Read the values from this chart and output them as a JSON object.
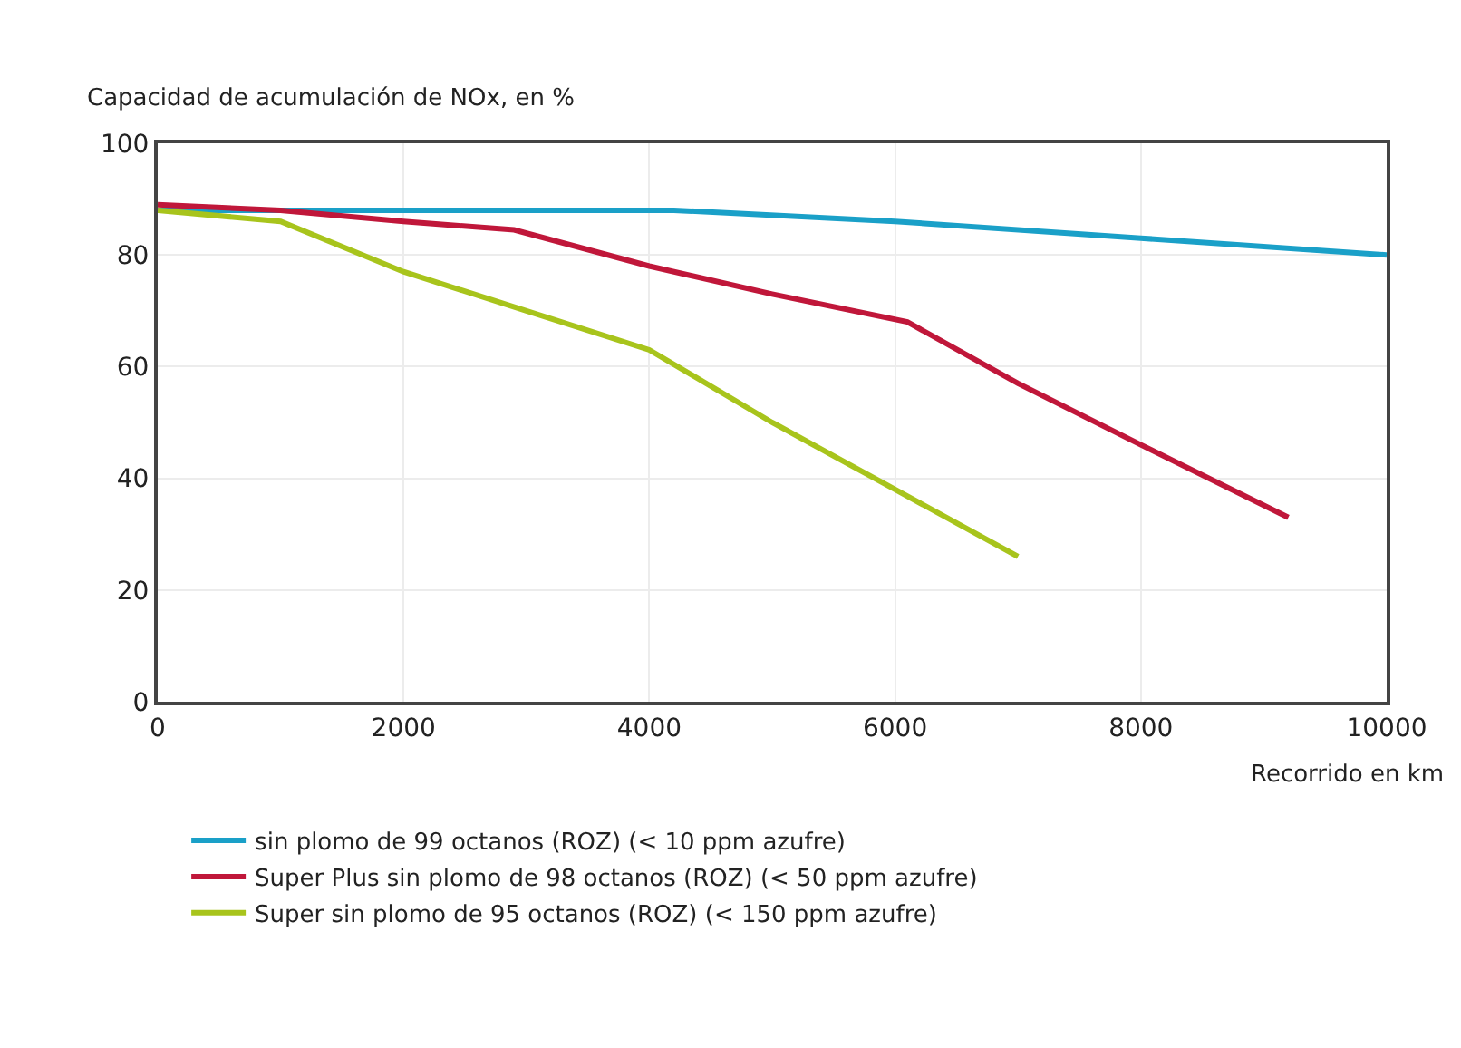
{
  "chart_data": {
    "type": "line",
    "ylabel": "Capacidad de acumulación de NOx, en %",
    "xlabel": "Recorrido en km",
    "xlim": [
      0,
      10000
    ],
    "xticks": [
      0,
      2000,
      4000,
      6000,
      8000,
      10000
    ],
    "ylim": [
      0,
      100
    ],
    "yticks": [
      0,
      20,
      40,
      60,
      80,
      100
    ],
    "grid": true,
    "legend": "bottom",
    "line_style": "solid",
    "series": [
      {
        "name": "sin plomo de 99 octanos (ROZ) (< 10 ppm azufre)",
        "color": "#1aa0c8",
        "x": [
          0,
          2000,
          4200,
          6000,
          8000,
          10000
        ],
        "values": [
          88,
          88,
          88,
          86,
          83,
          80
        ]
      },
      {
        "name": "Super Plus sin plomo de 98 octanos (ROZ) (< 50 ppm azufre)",
        "color": "#c0173a",
        "x": [
          0,
          1000,
          2000,
          2900,
          4000,
          5000,
          6100,
          7000,
          8000,
          9200
        ],
        "values": [
          89,
          88,
          86,
          84.5,
          78,
          73,
          68,
          57,
          46,
          33
        ]
      },
      {
        "name": "Super sin plomo de 95 octanos (ROZ) (< 150 ppm azufre)",
        "color": "#a8c41c",
        "x": [
          0,
          1000,
          2000,
          3000,
          4000,
          5000,
          6000,
          7000
        ],
        "values": [
          88,
          86,
          77,
          70,
          63,
          50,
          38,
          26
        ]
      }
    ]
  }
}
